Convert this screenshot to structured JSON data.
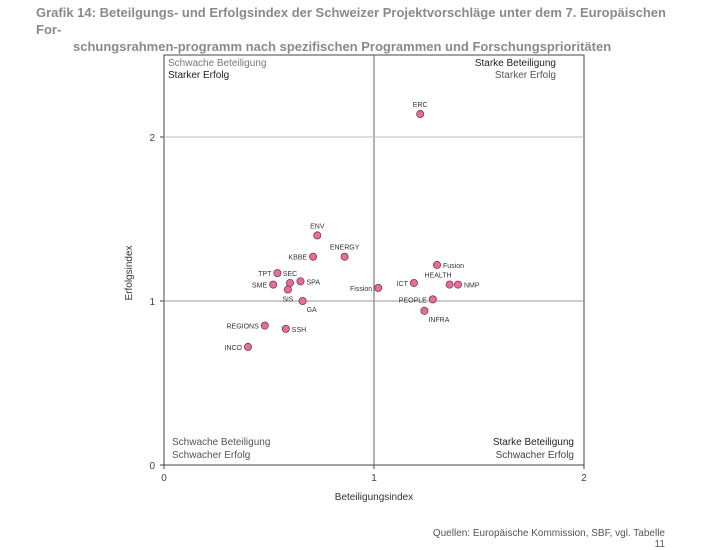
{
  "chart_data": {
    "type": "scatter",
    "title_line1": "Grafik 14: Beteilgungs- und Erfolgsindex der Schweizer Projektvorschläge unter dem 7. Europäischen For-",
    "title_line2": "schungsrahmen-programm nach spezifischen Programmen und Forschungsprioritäten",
    "xlabel": "Beteiligungsindex",
    "ylabel": "Erfolgsindex",
    "xlim": [
      0,
      2
    ],
    "ylim": [
      0,
      2.5
    ],
    "xticks": [
      "0",
      "1",
      "2"
    ],
    "yticks": [
      "0",
      "1",
      "2"
    ],
    "reference_lines": {
      "x": 1,
      "y": 1
    },
    "quadrants": {
      "top_left": {
        "line1": "Schwache Beteiligung",
        "line2": "Starker Erfolg"
      },
      "top_right": {
        "line1": "Starke Beteiligung",
        "line2": "Starker Erfolg"
      },
      "bottom_left": {
        "line1": "Schwache Beteiligung",
        "line2": "Schwacher Erfolg"
      },
      "bottom_right": {
        "line1": "Starke Beteiligung",
        "line2": "Schwacher Erfolg"
      }
    },
    "points": [
      {
        "label": "ERC",
        "x": 1.22,
        "y": 2.14,
        "pos": "above"
      },
      {
        "label": "ENV",
        "x": 0.73,
        "y": 1.4,
        "pos": "above"
      },
      {
        "label": "ENERGY",
        "x": 0.86,
        "y": 1.27,
        "pos": "above"
      },
      {
        "label": "KBBE",
        "x": 0.71,
        "y": 1.27,
        "pos": "left"
      },
      {
        "label": "TPT",
        "x": 0.54,
        "y": 1.17,
        "pos": "left"
      },
      {
        "label": "SEC",
        "x": 0.6,
        "y": 1.11,
        "pos": "above"
      },
      {
        "label": "SPA",
        "x": 0.65,
        "y": 1.12,
        "pos": "right"
      },
      {
        "label": "SME",
        "x": 0.52,
        "y": 1.1,
        "pos": "left"
      },
      {
        "label": "SiS",
        "x": 0.59,
        "y": 1.07,
        "pos": "below"
      },
      {
        "label": "GA",
        "x": 0.66,
        "y": 1.0,
        "pos": "belowright"
      },
      {
        "label": "Fission",
        "x": 1.02,
        "y": 1.08,
        "pos": "left"
      },
      {
        "label": "ICT",
        "x": 1.19,
        "y": 1.11,
        "pos": "left"
      },
      {
        "label": "Fusion",
        "x": 1.3,
        "y": 1.22,
        "pos": "right"
      },
      {
        "label": "HEALTH",
        "x": 1.36,
        "y": 1.1,
        "pos": "aboveleft"
      },
      {
        "label": "NMP",
        "x": 1.4,
        "y": 1.1,
        "pos": "right"
      },
      {
        "label": "PEOPLE",
        "x": 1.28,
        "y": 1.01,
        "pos": "left"
      },
      {
        "label": "INFRA",
        "x": 1.24,
        "y": 0.94,
        "pos": "belowright"
      },
      {
        "label": "REGIONS",
        "x": 0.48,
        "y": 0.85,
        "pos": "left"
      },
      {
        "label": "SSH",
        "x": 0.58,
        "y": 0.83,
        "pos": "right"
      },
      {
        "label": "INCO",
        "x": 0.4,
        "y": 0.72,
        "pos": "left"
      }
    ],
    "marker_color": "#e0709c",
    "marker_edge": "#8a3055"
  },
  "source": "Quellen: Europäische Kommission, SBF, vgl. Tabelle 11"
}
